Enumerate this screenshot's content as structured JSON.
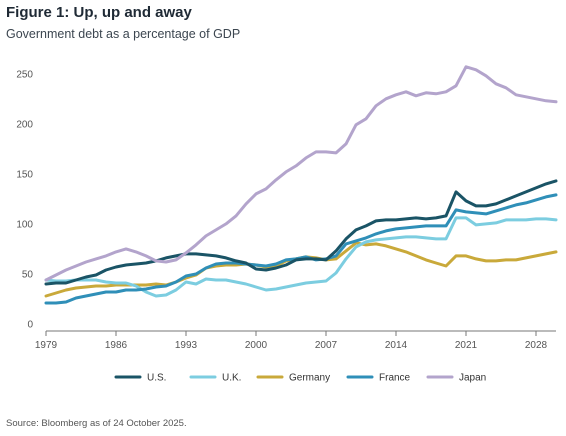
{
  "title": "Figure 1: Up, up and away",
  "subtitle": "Government debt as a percentage of GDP",
  "source": "Source: Bloomberg as of 24 October 2025.",
  "chart_data": {
    "type": "line",
    "title": "Figure 1: Up, up and away",
    "subtitle": "Government debt as a percentage of GDP",
    "xlabel": "",
    "ylabel": "",
    "xlim": [
      1979,
      2030
    ],
    "ylim": [
      0,
      260
    ],
    "x_ticks": [
      1979,
      1986,
      1993,
      2000,
      2007,
      2014,
      2021,
      2028
    ],
    "y_ticks": [
      0,
      50,
      100,
      150,
      200,
      250
    ],
    "grid": false,
    "legend_position": "bottom",
    "x": [
      1979,
      1980,
      1981,
      1982,
      1983,
      1984,
      1985,
      1986,
      1987,
      1988,
      1989,
      1990,
      1991,
      1992,
      1993,
      1994,
      1995,
      1996,
      1997,
      1998,
      1999,
      2000,
      2001,
      2002,
      2003,
      2004,
      2005,
      2006,
      2007,
      2008,
      2009,
      2010,
      2011,
      2012,
      2013,
      2014,
      2015,
      2016,
      2017,
      2018,
      2019,
      2020,
      2021,
      2022,
      2023,
      2024,
      2025,
      2026,
      2027,
      2028,
      2029,
      2030
    ],
    "series": [
      {
        "name": "U.S.",
        "color": "#1a5466",
        "values": [
          40,
          41,
          41,
          44,
          47,
          49,
          54,
          57,
          59,
          60,
          61,
          63,
          66,
          68,
          70,
          70,
          69,
          68,
          66,
          63,
          61,
          55,
          54,
          56,
          59,
          64,
          65,
          65,
          64,
          73,
          85,
          94,
          98,
          103,
          104,
          104,
          105,
          106,
          105,
          106,
          108,
          132,
          123,
          118,
          118,
          120,
          124,
          128,
          132,
          136,
          140,
          143
        ]
      },
      {
        "name": "U.K.",
        "color": "#7ccde0",
        "values": [
          44,
          43,
          43,
          44,
          44,
          44,
          42,
          41,
          41,
          38,
          32,
          28,
          29,
          34,
          42,
          40,
          45,
          44,
          44,
          42,
          40,
          37,
          34,
          35,
          37,
          39,
          41,
          42,
          43,
          51,
          65,
          77,
          82,
          84,
          85,
          86,
          87,
          87,
          86,
          85,
          85,
          106,
          106,
          99,
          100,
          101,
          104,
          104,
          104,
          105,
          105,
          104
        ]
      },
      {
        "name": "Germany",
        "color": "#c9a93a",
        "values": [
          28,
          31,
          34,
          36,
          37,
          38,
          38,
          39,
          39,
          39,
          39,
          40,
          39,
          42,
          46,
          49,
          56,
          58,
          59,
          59,
          60,
          59,
          57,
          58,
          63,
          65,
          67,
          66,
          64,
          65,
          73,
          81,
          79,
          80,
          78,
          75,
          72,
          68,
          64,
          61,
          58,
          68,
          68,
          65,
          63,
          63,
          64,
          64,
          66,
          68,
          70,
          72
        ]
      },
      {
        "name": "France",
        "color": "#2f8fb8",
        "values": [
          21,
          21,
          22,
          26,
          28,
          30,
          32,
          32,
          34,
          34,
          35,
          37,
          38,
          42,
          48,
          50,
          56,
          60,
          61,
          61,
          60,
          59,
          58,
          60,
          64,
          65,
          67,
          64,
          65,
          68,
          80,
          83,
          86,
          90,
          93,
          95,
          96,
          97,
          98,
          98,
          98,
          114,
          112,
          111,
          110,
          113,
          116,
          119,
          121,
          124,
          127,
          129
        ]
      },
      {
        "name": "Japan",
        "color": "#b3a4cc",
        "values": [
          44,
          49,
          54,
          58,
          62,
          65,
          68,
          72,
          75,
          72,
          68,
          63,
          62,
          64,
          71,
          79,
          88,
          94,
          100,
          108,
          120,
          130,
          135,
          144,
          152,
          158,
          166,
          172,
          172,
          171,
          180,
          199,
          205,
          218,
          225,
          229,
          232,
          228,
          231,
          230,
          232,
          238,
          257,
          254,
          248,
          240,
          236,
          229,
          227,
          225,
          223,
          222
        ]
      }
    ]
  }
}
